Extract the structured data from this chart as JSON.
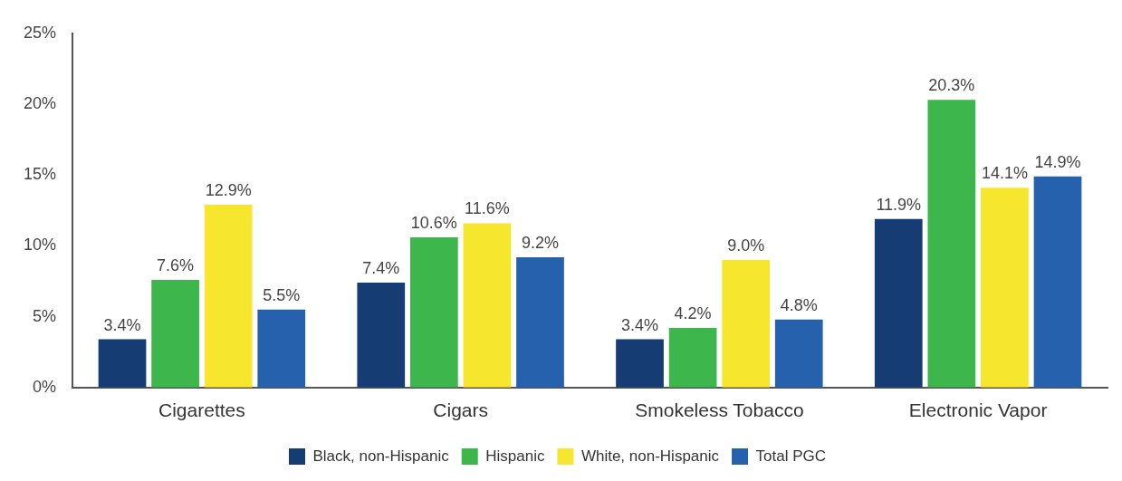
{
  "chart_data": {
    "type": "bar",
    "categories": [
      "Cigarettes",
      "Cigars",
      "Smokeless Tobacco",
      "Electronic Vapor"
    ],
    "series": [
      {
        "name": "Black, non-Hispanic",
        "color": "#163c74",
        "values": [
          3.4,
          7.4,
          3.4,
          11.9
        ],
        "value_labels": [
          "3.4%",
          "7.4%",
          "3.4%",
          "11.9%"
        ]
      },
      {
        "name": "Hispanic",
        "color": "#3db64b",
        "values": [
          7.6,
          10.6,
          4.2,
          20.3
        ],
        "value_labels": [
          "7.6%",
          "10.6%",
          "4.2%",
          "20.3%"
        ]
      },
      {
        "name": "White, non-Hispanic",
        "color": "#f6e62e",
        "values": [
          12.9,
          11.6,
          9.0,
          14.1
        ],
        "value_labels": [
          "12.9%",
          "11.6%",
          "9.0%",
          "14.1%"
        ]
      },
      {
        "name": "Total PGC",
        "color": "#2661ad",
        "values": [
          5.5,
          9.2,
          4.8,
          14.9
        ],
        "value_labels": [
          "5.5%",
          "9.2%",
          "4.8%",
          "14.9%"
        ]
      }
    ],
    "ylim": [
      0,
      25
    ],
    "yticks": [
      {
        "value": 0,
        "label": "0%"
      },
      {
        "value": 5,
        "label": "5%"
      },
      {
        "value": 10,
        "label": "10%"
      },
      {
        "value": 15,
        "label": "15%"
      },
      {
        "value": 20,
        "label": "20%"
      },
      {
        "value": 25,
        "label": "25%"
      }
    ],
    "grid": false,
    "legend": "bottom"
  }
}
